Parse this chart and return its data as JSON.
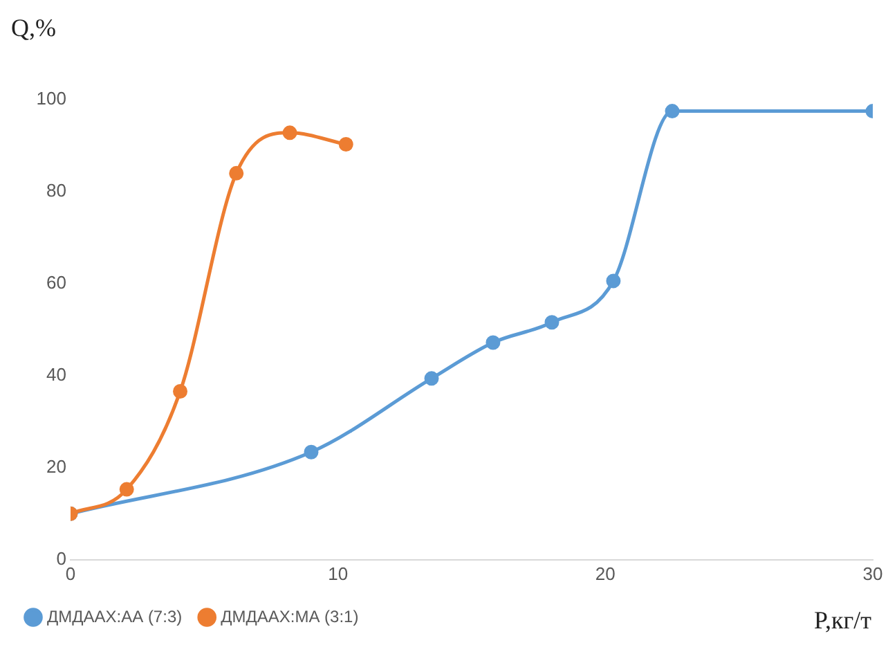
{
  "chart_data": {
    "type": "line",
    "xlabel": "P,кг/т",
    "ylabel": "Q,%",
    "xlim": [
      0,
      30
    ],
    "xticks": [
      0,
      10,
      20,
      30
    ],
    "ylim": [
      0,
      100
    ],
    "yticks": [
      0,
      20,
      40,
      60,
      80,
      100
    ],
    "grid": false,
    "legend": "bottom",
    "marker": "circle",
    "line_style": "solid",
    "series": [
      {
        "name": "ДМДААХ:АА (7:3)",
        "color": "#5b9bd5",
        "x": [
          0,
          9,
          13.5,
          15.8,
          18,
          20.3,
          22.5,
          30
        ],
        "values": [
          10,
          23.4,
          39.4,
          47.2,
          51.6,
          60.6,
          97.5,
          97.5
        ]
      },
      {
        "name": "ДМДААХ:МА (3:1)",
        "color": "#ed7d31",
        "x": [
          0,
          2.1,
          4.1,
          6.2,
          8.2,
          10.3
        ],
        "values": [
          10,
          15.3,
          36.6,
          84,
          92.8,
          90.3
        ]
      }
    ]
  }
}
